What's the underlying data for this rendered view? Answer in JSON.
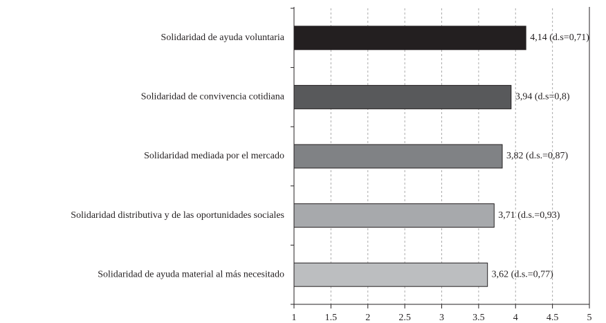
{
  "chart_data": {
    "type": "bar",
    "orientation": "horizontal",
    "categories": [
      "Solidaridad de ayuda voluntaria",
      "Solidaridad de convivencia cotidiana",
      "Solidaridad mediada por el mercado",
      "Solidaridad distributiva y de las oportunidades sociales",
      "Solidaridad de ayuda material al más necesitado"
    ],
    "values": [
      4.14,
      3.94,
      3.82,
      3.71,
      3.62
    ],
    "value_labels": [
      "4,14 (d.s=0,71)",
      "3,94 (d.s=0,8)",
      "3,82 (d.s.=0,87)",
      "3,71 (d.s.=0,93)",
      "3,62 (d.s.=0,77)"
    ],
    "colors": [
      "#231f20",
      "#58595b",
      "#808285",
      "#a7a9ac",
      "#bcbec0"
    ],
    "xlim": [
      1,
      5
    ],
    "xticks": [
      1,
      1.5,
      2,
      2.5,
      3,
      3.5,
      4,
      4.5,
      5
    ],
    "grid": true
  }
}
